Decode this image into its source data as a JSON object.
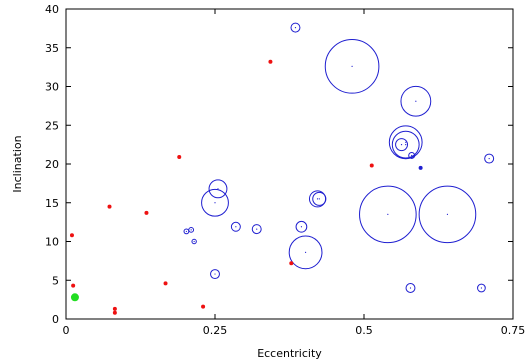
{
  "chart_data": {
    "type": "scatter",
    "xlabel": "Eccentricity",
    "ylabel": "Inclination",
    "xlim": [
      0,
      0.75
    ],
    "ylim": [
      0,
      40
    ],
    "xticks": [
      "0",
      "0.25",
      "0.5",
      "0.75"
    ],
    "yticks": [
      "0",
      "5",
      "10",
      "15",
      "20",
      "25",
      "30",
      "35",
      "40"
    ],
    "grid": false,
    "legend": "none",
    "colors": {
      "open": "#1f1fd0",
      "red": "#ee1111",
      "green": "#22dd22"
    },
    "series": [
      {
        "style": "open-circle",
        "note_size": "marker size varies per point",
        "points": [
          {
            "x": 0.385,
            "y": 37.6,
            "size": 0.015
          },
          {
            "x": 0.48,
            "y": 32.6,
            "size": 0.09
          },
          {
            "x": 0.587,
            "y": 28.1,
            "size": 0.05
          },
          {
            "x": 0.57,
            "y": 22.8,
            "size": 0.055
          },
          {
            "x": 0.57,
            "y": 22.5,
            "size": 0.045
          },
          {
            "x": 0.563,
            "y": 22.5,
            "size": 0.02
          },
          {
            "x": 0.58,
            "y": 21.1,
            "size": 0.01
          },
          {
            "x": 0.71,
            "y": 20.7,
            "size": 0.015
          },
          {
            "x": 0.255,
            "y": 16.8,
            "size": 0.03
          },
          {
            "x": 0.25,
            "y": 15.0,
            "size": 0.045
          },
          {
            "x": 0.422,
            "y": 15.5,
            "size": 0.027
          },
          {
            "x": 0.425,
            "y": 15.5,
            "size": 0.022
          },
          {
            "x": 0.54,
            "y": 13.5,
            "size": 0.095
          },
          {
            "x": 0.64,
            "y": 13.5,
            "size": 0.095
          },
          {
            "x": 0.202,
            "y": 11.3,
            "size": 0.008
          },
          {
            "x": 0.21,
            "y": 11.5,
            "size": 0.008
          },
          {
            "x": 0.285,
            "y": 11.9,
            "size": 0.015
          },
          {
            "x": 0.32,
            "y": 11.6,
            "size": 0.015
          },
          {
            "x": 0.395,
            "y": 11.9,
            "size": 0.018
          },
          {
            "x": 0.215,
            "y": 10.0,
            "size": 0.005
          },
          {
            "x": 0.402,
            "y": 8.6,
            "size": 0.055
          },
          {
            "x": 0.25,
            "y": 5.8,
            "size": 0.015
          },
          {
            "x": 0.578,
            "y": 4.0,
            "size": 0.015
          },
          {
            "x": 0.697,
            "y": 4.0,
            "size": 0.013
          }
        ]
      },
      {
        "style": "filled-red",
        "points": [
          {
            "x": 0.343,
            "y": 33.2
          },
          {
            "x": 0.19,
            "y": 20.9
          },
          {
            "x": 0.513,
            "y": 19.8
          },
          {
            "x": 0.073,
            "y": 14.5
          },
          {
            "x": 0.135,
            "y": 13.7
          },
          {
            "x": 0.01,
            "y": 10.8
          },
          {
            "x": 0.378,
            "y": 7.2
          },
          {
            "x": 0.167,
            "y": 4.6
          },
          {
            "x": 0.012,
            "y": 4.3
          },
          {
            "x": 0.23,
            "y": 1.6
          },
          {
            "x": 0.082,
            "y": 1.3
          },
          {
            "x": 0.082,
            "y": 0.8
          }
        ]
      },
      {
        "style": "filled-blue",
        "points": [
          {
            "x": 0.595,
            "y": 19.5
          }
        ]
      },
      {
        "style": "filled-green",
        "points": [
          {
            "x": 0.015,
            "y": 2.8
          }
        ]
      }
    ]
  }
}
